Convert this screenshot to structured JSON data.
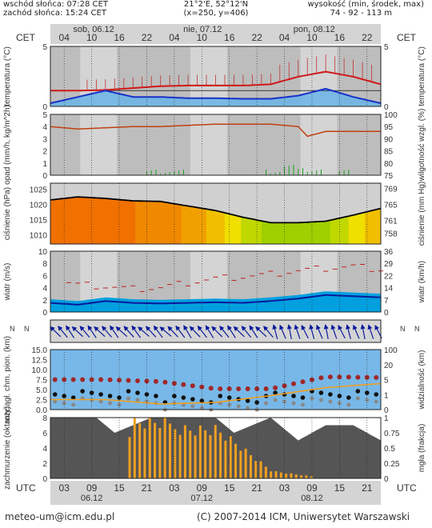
{
  "header": {
    "sunrise": "wschód słońca: 07:28 CET",
    "sunset": "zachód słońca: 15:24 CET",
    "coords": "21°2'E, 52°12'N",
    "grid": "(x=250, y=406)",
    "altitude_label": "wysokość (min, środek, max)",
    "altitude_values": "74 - 92 - 113 m"
  },
  "timeline": {
    "tz_label": "CET",
    "utc_label": "UTC",
    "days_top": [
      "sob, 06.12",
      "nie, 07.12",
      "pon, 08.12"
    ],
    "hours_top": [
      "04",
      "10",
      "16",
      "22",
      "04",
      "10",
      "16",
      "22",
      "04",
      "10",
      "16",
      "22"
    ],
    "hours_bottom": [
      "03",
      "09",
      "15",
      "21",
      "03",
      "09",
      "15",
      "21",
      "03",
      "09",
      "15",
      "21"
    ],
    "days_bottom": [
      "06.12",
      "07.12",
      "08.12"
    ]
  },
  "footer": {
    "email": "meteo-um@icm.edu.pl",
    "copyright": "(C) 2007-2014 ICM, Uniwersytet Warszawski"
  },
  "colors": {
    "panel_bg": "#d4d4d4",
    "night_bg": "#bdbdbd",
    "temp_red": "#d01818",
    "temp_blue": "#1830c8",
    "humidity": "#c04010",
    "pressure_line": "#000000",
    "wind_dark": "#0a1a9a",
    "wind_fill": "#00a0e0",
    "gust": "#c02020",
    "precip": "#18a018",
    "cloud_bar": "#f0a020",
    "visibility": "#f0a020",
    "dark_cloud": "#555555"
  },
  "chart_data": [
    {
      "type": "line",
      "id": "temperature",
      "ylabel_left": "temperatura (°C)",
      "ylabel_right": "temperatura (°C)",
      "yticks": [
        5,
        0
      ],
      "ylim": [
        -2.5,
        7
      ],
      "x_hours": [
        0,
        6,
        12,
        18,
        24,
        30,
        36,
        42,
        48,
        54,
        60,
        66,
        72
      ],
      "series": [
        {
          "values": [
            0.0,
            0.0,
            0.1,
            0.4,
            0.7,
            0.8,
            0.8,
            0.8,
            1.0,
            2.2,
            3.0,
            2.2,
            1.0
          ]
        },
        {
          "values": [
            -2.0,
            -1.0,
            0.0,
            -1.0,
            -1.0,
            -1.2,
            -1.2,
            -1.3,
            -1.3,
            -0.8,
            0.3,
            -1.0,
            -2.0
          ]
        }
      ]
    },
    {
      "type": "line",
      "id": "precip-humidity",
      "ylabel_left": "opad (mm/h, kg/m^2h)",
      "ylabel_right": "wilgotność wzgl. (%)",
      "yticks_left": [
        5,
        4,
        3,
        2,
        1,
        0
      ],
      "yticks_right": [
        100,
        95,
        90,
        85,
        80,
        75
      ],
      "ylim_left": [
        0,
        5
      ],
      "ylim_right": [
        75,
        100
      ],
      "x_hours": [
        0,
        6,
        12,
        18,
        24,
        30,
        36,
        42,
        48,
        54,
        56,
        60,
        66,
        72
      ],
      "series": [
        {
          "values": [
            95,
            94,
            94.5,
            95,
            95,
            95.5,
            96,
            96,
            96,
            95,
            91,
            93,
            93,
            93
          ]
        }
      ]
    },
    {
      "type": "area",
      "id": "pressure",
      "ylabel_left": "ciśnienie (hPa)",
      "ylabel_right": "ciśnienie (mm Hg)",
      "yticks_left": [
        1025,
        1020,
        1015,
        1010
      ],
      "yticks_right": [
        769,
        765,
        761,
        758
      ],
      "ylim": [
        1007,
        1027
      ],
      "x_hours": [
        0,
        6,
        12,
        18,
        24,
        30,
        36,
        42,
        48,
        54,
        60,
        66,
        72
      ],
      "values": [
        1021.5,
        1022.5,
        1022.0,
        1021.2,
        1021.0,
        1019.5,
        1018.0,
        1015.8,
        1014.0,
        1014.0,
        1014.5,
        1016.5,
        1018.7
      ]
    },
    {
      "type": "line",
      "id": "wind",
      "ylabel_left": "wiatr (m/s)",
      "ylabel_right": "wiatr (km/h)",
      "yticks_left": [
        10,
        8,
        6,
        4,
        2,
        0
      ],
      "yticks_right": [
        36,
        29,
        22,
        14,
        7,
        0
      ],
      "ylim": [
        0,
        10
      ],
      "x_hours": [
        0,
        6,
        12,
        18,
        24,
        30,
        36,
        42,
        48,
        54,
        60,
        66,
        72
      ],
      "series": [
        {
          "values": [
            1.5,
            1.2,
            1.8,
            1.5,
            1.4,
            1.5,
            1.6,
            1.5,
            1.8,
            2.2,
            2.8,
            2.6,
            2.4
          ]
        },
        {
          "values": [
            5.5,
            4.5,
            4.2,
            3.8,
            4.0,
            4.8,
            5.5,
            5.8,
            6.2,
            6.8,
            7.2,
            7.5,
            7.0
          ]
        }
      ]
    },
    {
      "type": "scatter",
      "id": "visibility",
      "ylabel_left": "rozciągł. chm. pion. (km)",
      "ylabel_right": "widzialność (km)",
      "yticks_left": [
        15.0,
        12.5,
        10.0,
        7.5,
        5.0,
        2.5,
        0.0
      ],
      "yticks_right": [
        100,
        20,
        5,
        1,
        0
      ],
      "ylim": [
        0,
        15
      ],
      "x_hours": [
        0,
        12,
        24,
        36,
        48,
        60,
        72
      ],
      "series": [
        {
          "values": [
            7.5,
            7.5,
            7.0,
            5.2,
            5.2,
            8.2,
            8.0
          ]
        }
      ]
    },
    {
      "type": "bar",
      "id": "cloud-fog",
      "ylabel_left": "zachmurzenie (oktanty)",
      "ylabel_right": "mgła (frakcja)",
      "yticks_left": [
        8,
        6,
        4,
        2,
        0
      ],
      "yticks_right": [
        1,
        0.75,
        0.5,
        0.25,
        0
      ],
      "ylim": [
        0,
        8
      ],
      "x_hours": [
        0,
        12,
        18,
        24,
        30,
        36,
        48,
        60,
        72
      ],
      "values": [
        0,
        0,
        7.5,
        7.5,
        7,
        7,
        1,
        0,
        0
      ]
    }
  ]
}
